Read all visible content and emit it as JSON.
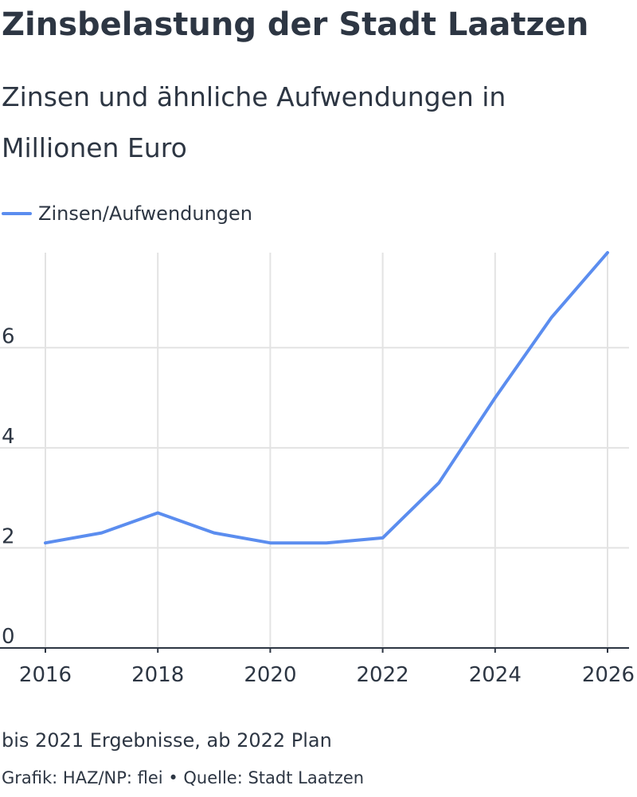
{
  "chart_data": {
    "type": "line",
    "title": "Zinsbelastung der Stadt Laatzen",
    "subtitle": "Zinsen und ähnliche Aufwendungen in Millionen Euro",
    "xlabel": "",
    "ylabel": "",
    "x": [
      2016,
      2017,
      2018,
      2019,
      2020,
      2021,
      2022,
      2023,
      2024,
      2025,
      2026
    ],
    "series": [
      {
        "name": "Zinsen/Aufwendungen",
        "color": "#5b8def",
        "values": [
          2.1,
          2.3,
          2.7,
          2.3,
          2.1,
          2.1,
          2.2,
          3.3,
          5.0,
          6.6,
          7.9
        ]
      }
    ],
    "xlim": [
      2016,
      2026
    ],
    "ylim": [
      0,
      7.9
    ],
    "x_ticks": [
      "2016",
      "2018",
      "2020",
      "2022",
      "2024",
      "2026"
    ],
    "y_ticks": [
      "0",
      "2",
      "4",
      "6"
    ],
    "grid": true,
    "legend_position": "top-left"
  },
  "footer": {
    "note": "bis 2021 Ergebnisse, ab 2022 Plan",
    "credit": "Grafik: HAZ/NP: flei • Quelle: Stadt Laatzen"
  }
}
